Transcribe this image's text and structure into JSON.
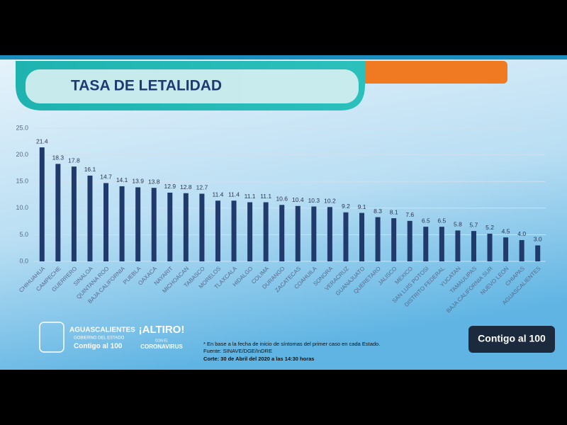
{
  "chart_data": {
    "type": "bar",
    "title": "TASA DE LETALIDAD",
    "categories": [
      "CHIHUAHUA",
      "CAMPECHE",
      "GUERRERO",
      "SINALOA",
      "QUINTANA ROO",
      "BAJA CALIFORNIA",
      "PUEBLA",
      "OAXACA",
      "NAYARIT",
      "MICHOACAN",
      "TABASCO",
      "MORELOS",
      "TLAXCALA",
      "HIDALGO",
      "COLIMA",
      "DURANGO",
      "ZACATECAS",
      "COAHUILA",
      "SONORA",
      "VERACRUZ",
      "GUANAJUATO",
      "QUERETARO",
      "JALISCO",
      "MEXICO",
      "SAN LUIS POTOSI",
      "DISTRITO FEDERAL",
      "YUCATAN",
      "TAMAULIPAS",
      "BAJA CALIFORNIA SUR",
      "NUEVO LEON",
      "CHIAPAS",
      "AGUASCALIENTES"
    ],
    "values": [
      21.4,
      18.3,
      17.8,
      16.1,
      14.7,
      14.1,
      13.9,
      13.8,
      12.9,
      12.8,
      12.7,
      11.4,
      11.4,
      11.1,
      11.1,
      10.6,
      10.4,
      10.3,
      10.2,
      9.2,
      9.1,
      8.3,
      8.1,
      7.6,
      6.5,
      6.5,
      5.8,
      5.7,
      5.2,
      4.5,
      4.0,
      3.0
    ],
    "value_labels": [
      "21.4",
      "18.3",
      "17.8",
      "16.1",
      "14.7",
      "14.1",
      "13.9",
      "13.8",
      "12.9",
      "12.8",
      "12.7",
      "11.4",
      "11.4",
      "11.1",
      "11.1",
      "10.6",
      "10.4",
      "10.3",
      "10.2",
      "9.2",
      "9.1",
      "8.3",
      "8.1",
      "7.6",
      "6.5",
      "6.5",
      "5.8",
      "5.7",
      "5.2",
      "4.5",
      "4.0",
      "3.0"
    ],
    "color": "#1f3a6b",
    "ylim": [
      0,
      25
    ],
    "yticks": [
      {
        "value": 0,
        "label": "0.0"
      },
      {
        "value": 5,
        "label": "5.0"
      },
      {
        "value": 10,
        "label": "10.0"
      },
      {
        "value": 15,
        "label": "15.0"
      },
      {
        "value": 20,
        "label": "20.0"
      },
      {
        "value": 25,
        "label": "25.0"
      }
    ],
    "grid": true
  },
  "logos": {
    "state": "AGUASCALIENTES",
    "government": "GOBIERNO DEL ESTADO",
    "slogan": "Contigo al 100",
    "campaign_top": "¡ALTIRO!",
    "campaign_mid": "CON EL",
    "campaign_bottom": "CORONAVIRUS",
    "badge": "Contigo al 100"
  },
  "notes": [
    "* En base a la fecha de inicio de síntomas del primer caso en cada Estado.",
    "Fuente: SINAVE/DGE/InDRE",
    "Corte: 30 de Abril del 2020 a las 14:30 horas"
  ]
}
